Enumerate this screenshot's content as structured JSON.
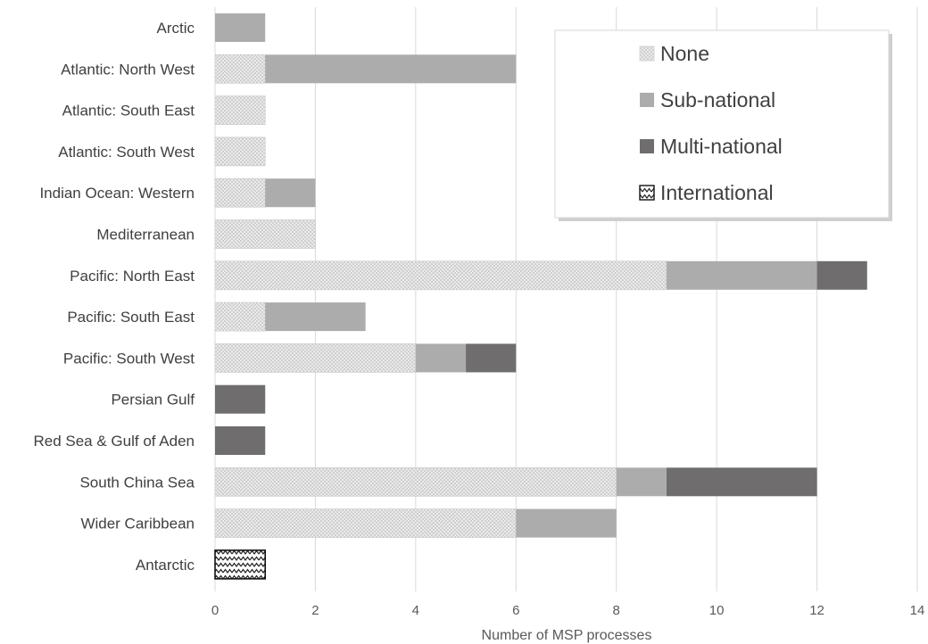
{
  "chart_data": {
    "type": "bar",
    "orientation": "horizontal",
    "stacked": true,
    "categories": [
      "Arctic",
      "Atlantic: North West",
      "Atlantic: South East",
      "Atlantic: South West",
      "Indian Ocean: Western",
      "Mediterranean",
      "Pacific: North East",
      "Pacific: South East",
      "Pacific: South West",
      "Persian Gulf",
      "Red Sea & Gulf of Aden",
      "South China Sea",
      "Wider Caribbean",
      "Antarctic"
    ],
    "series": [
      {
        "name": "None",
        "pattern": "crosshatch-light",
        "color": "#e3e3e3",
        "values": [
          0,
          1,
          1,
          1,
          1,
          2,
          9,
          1,
          4,
          0,
          0,
          8,
          6,
          0
        ]
      },
      {
        "name": "Sub-national",
        "pattern": "solid",
        "color": "#acacac",
        "values": [
          1,
          5,
          0,
          0,
          1,
          0,
          3,
          2,
          1,
          0,
          0,
          1,
          2,
          0
        ]
      },
      {
        "name": "Multi-national",
        "pattern": "solid",
        "color": "#6f6d6d",
        "values": [
          0,
          0,
          0,
          0,
          0,
          0,
          1,
          0,
          1,
          1,
          1,
          3,
          0,
          0
        ]
      },
      {
        "name": "International",
        "pattern": "zigzag",
        "color": "#222222",
        "values": [
          0,
          0,
          0,
          0,
          0,
          0,
          0,
          0,
          0,
          0,
          0,
          0,
          0,
          1
        ]
      }
    ],
    "title": "",
    "xlabel": "Number of MSP processes",
    "ylabel": "",
    "xlim": [
      0,
      14
    ],
    "xticks": [
      0,
      2,
      4,
      6,
      8,
      10,
      12,
      14
    ],
    "grid": "vertical",
    "legend_position": "top-right"
  }
}
